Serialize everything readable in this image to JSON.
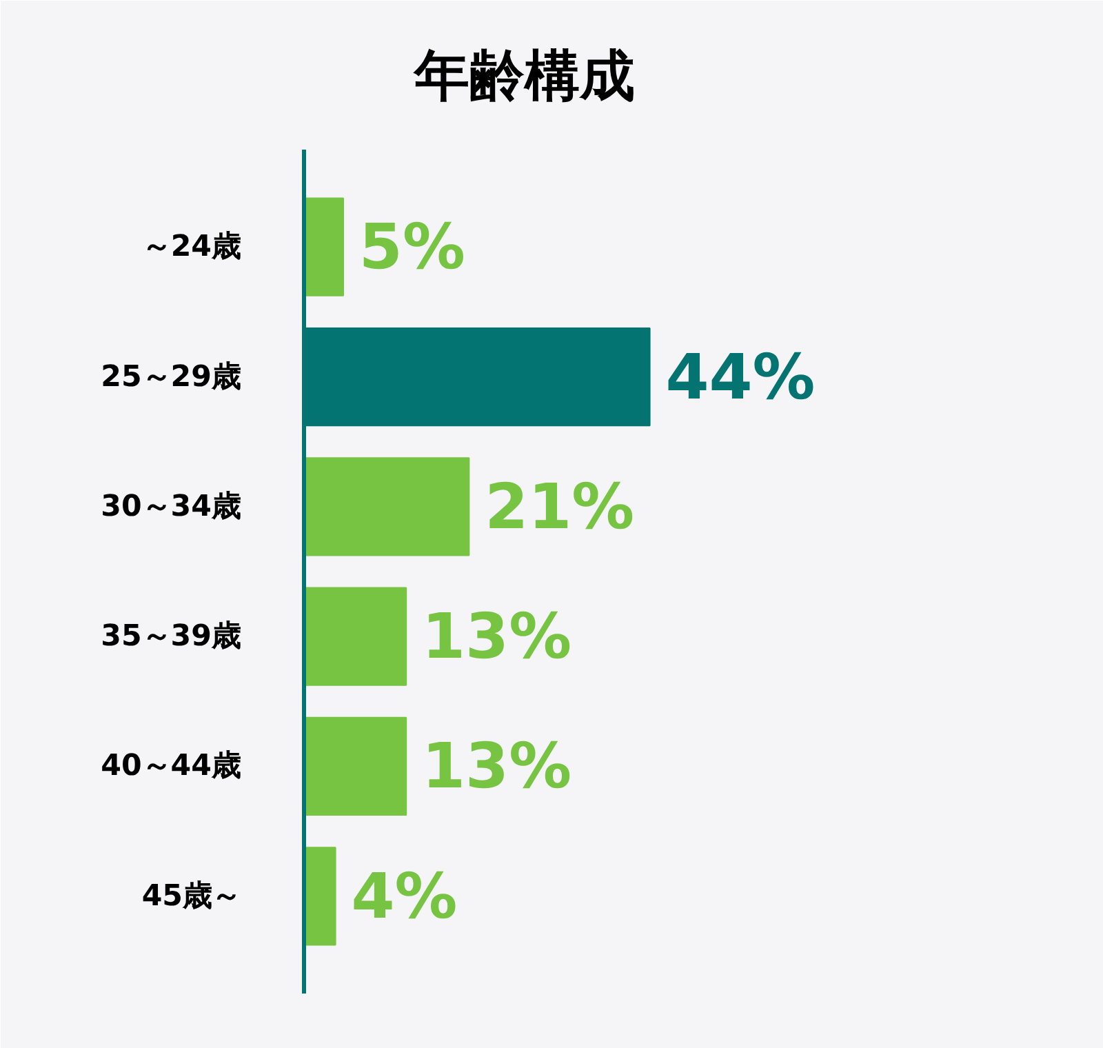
{
  "chart_data": {
    "type": "bar",
    "orientation": "horizontal",
    "title": "年齢構成",
    "categories": [
      "～24歳",
      "25～29歳",
      "30～34歳",
      "35～39歳",
      "40～44歳",
      "45歳～"
    ],
    "values": [
      5,
      44,
      21,
      13,
      13,
      4
    ],
    "colors": [
      "#76c442",
      "#037471",
      "#76c442",
      "#76c442",
      "#76c442",
      "#76c442"
    ],
    "value_labels": [
      "5%",
      "44%",
      "21%",
      "13%",
      "13%",
      "4%"
    ],
    "xlim": [
      0,
      100
    ],
    "grid": false,
    "tick_labels": "y"
  }
}
